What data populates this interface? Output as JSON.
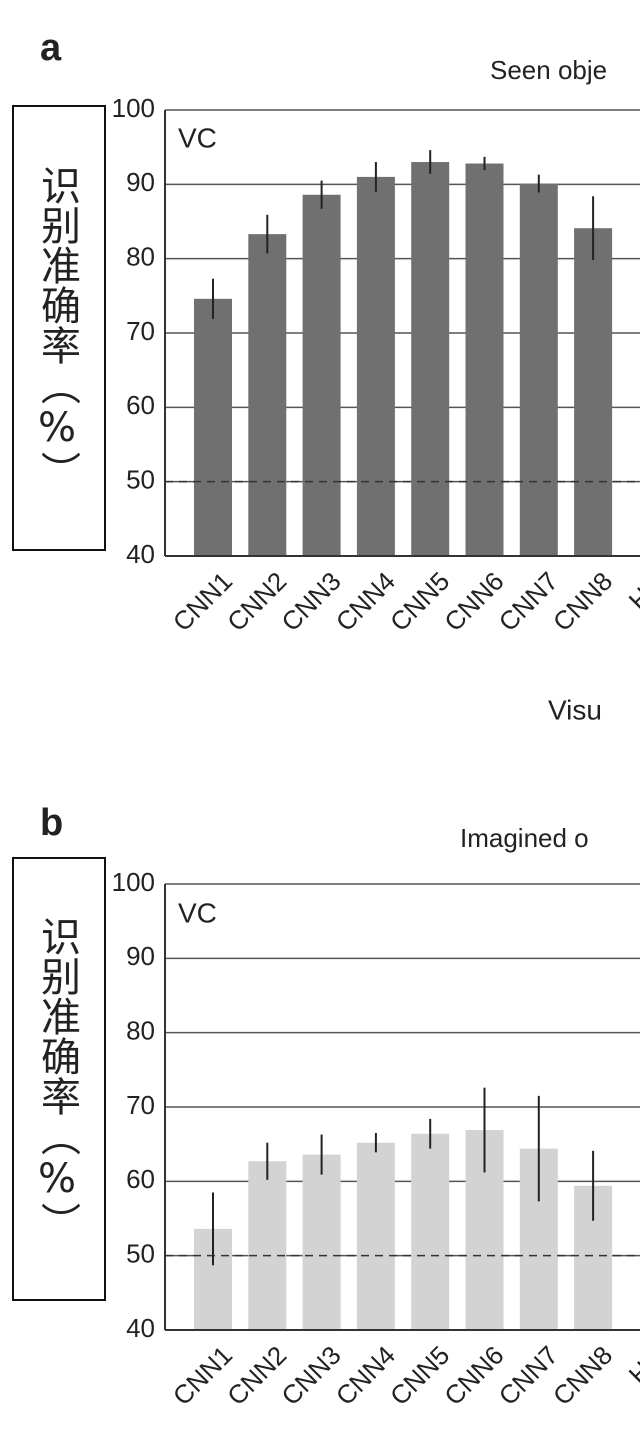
{
  "chart_data": [
    {
      "type": "bar",
      "panel_label": "a",
      "title": "Seen obje",
      "annotation": "VC",
      "y_label": "识别准确率（%）",
      "x_label": "Visu",
      "categories": [
        "CNN1",
        "CNN2",
        "CNN3",
        "CNN4",
        "CNN5",
        "CNN6",
        "CNN7",
        "CNN8",
        "HM"
      ],
      "values": [
        74.6,
        83.3,
        88.6,
        91.0,
        93.0,
        92.8,
        90.1,
        84.1,
        null
      ],
      "errors": [
        2.7,
        2.6,
        1.9,
        2.0,
        1.6,
        0.9,
        1.2,
        4.3,
        null
      ],
      "color": "#707070",
      "ylim": [
        40,
        100
      ],
      "yticks": [
        40,
        50,
        60,
        70,
        80,
        90,
        100
      ],
      "grid": true,
      "chance_level": 50
    },
    {
      "type": "bar",
      "panel_label": "b",
      "title": "Imagined o",
      "annotation": "VC",
      "y_label": "识别准确率（%）",
      "categories": [
        "CNN1",
        "CNN2",
        "CNN3",
        "CNN4",
        "CNN5",
        "CNN6",
        "CNN7",
        "CNN8",
        "HM"
      ],
      "values": [
        53.6,
        62.7,
        63.6,
        65.2,
        66.4,
        66.9,
        64.4,
        59.4,
        null
      ],
      "errors": [
        4.9,
        2.5,
        2.7,
        1.3,
        2.0,
        5.7,
        7.1,
        4.7,
        null
      ],
      "color": "#d3d3d3",
      "ylim": [
        40,
        100
      ],
      "yticks": [
        40,
        50,
        60,
        70,
        80,
        90,
        100
      ],
      "grid": true,
      "chance_level": 50
    }
  ]
}
